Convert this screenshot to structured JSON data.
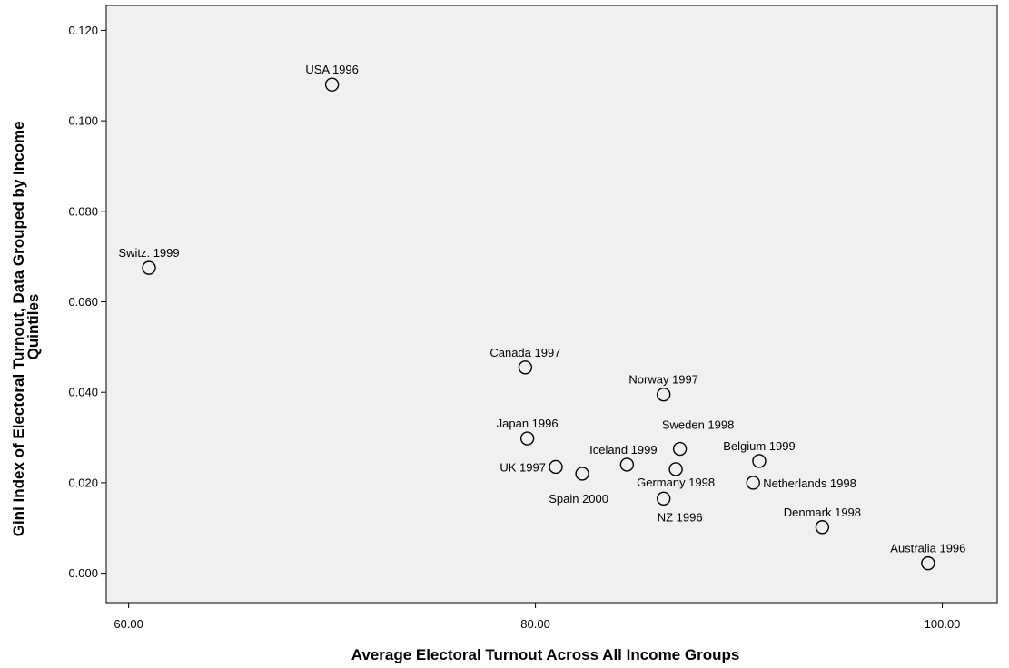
{
  "chart_data": {
    "type": "scatter",
    "xlabel": "Average Electoral Turnout Across All Income Groups",
    "ylabel_lines": [
      "Gini Index of Electoral Turnout, Data Grouped by Income",
      "Quintiles"
    ],
    "xlim": [
      58.9,
      102.7
    ],
    "ylim": [
      -0.0065,
      0.1255
    ],
    "x_ticks": [
      {
        "value": 60,
        "label": "60.00"
      },
      {
        "value": 80,
        "label": "80.00"
      },
      {
        "value": 100,
        "label": "100.00"
      }
    ],
    "y_ticks": [
      {
        "value": 0.0,
        "label": "0.000"
      },
      {
        "value": 0.02,
        "label": "0.020"
      },
      {
        "value": 0.04,
        "label": "0.040"
      },
      {
        "value": 0.06,
        "label": "0.060"
      },
      {
        "value": 0.08,
        "label": "0.080"
      },
      {
        "value": 0.1,
        "label": "0.100"
      },
      {
        "value": 0.12,
        "label": "0.120"
      }
    ],
    "grid": false,
    "colors": {
      "plot_background": "#f0f0f0",
      "marker_stroke": "#000000",
      "axis": "#000000"
    },
    "points": [
      {
        "label": "USA 1996",
        "x": 70.0,
        "y": 0.108,
        "label_pos": "above"
      },
      {
        "label": "Switz. 1999",
        "x": 61.0,
        "y": 0.0675,
        "label_pos": "above"
      },
      {
        "label": "Canada 1997",
        "x": 79.5,
        "y": 0.0455,
        "label_pos": "above"
      },
      {
        "label": "Norway 1997",
        "x": 86.3,
        "y": 0.0395,
        "label_pos": "above"
      },
      {
        "label": "Japan 1996",
        "x": 79.6,
        "y": 0.0298,
        "label_pos": "above"
      },
      {
        "label": "Sweden 1998",
        "x": 87.1,
        "y": 0.0275,
        "label_pos": "above-right"
      },
      {
        "label": "Belgium 1999",
        "x": 91.0,
        "y": 0.0248,
        "label_pos": "above"
      },
      {
        "label": "Iceland 1999",
        "x": 84.5,
        "y": 0.024,
        "label_pos": "above-left"
      },
      {
        "label": "UK 1997",
        "x": 81.0,
        "y": 0.0235,
        "label_pos": "left"
      },
      {
        "label": "Germany 1998",
        "x": 86.9,
        "y": 0.023,
        "label_pos": "below"
      },
      {
        "label": "Spain 2000",
        "x": 82.3,
        "y": 0.022,
        "label_pos": "below-left"
      },
      {
        "label": "Netherlands 1998",
        "x": 90.7,
        "y": 0.02,
        "label_pos": "right"
      },
      {
        "label": "NZ 1996",
        "x": 86.3,
        "y": 0.0165,
        "label_pos": "below-right"
      },
      {
        "label": "Denmark 1998",
        "x": 94.1,
        "y": 0.0102,
        "label_pos": "above"
      },
      {
        "label": "Australia 1996",
        "x": 99.3,
        "y": 0.0022,
        "label_pos": "above"
      }
    ]
  }
}
